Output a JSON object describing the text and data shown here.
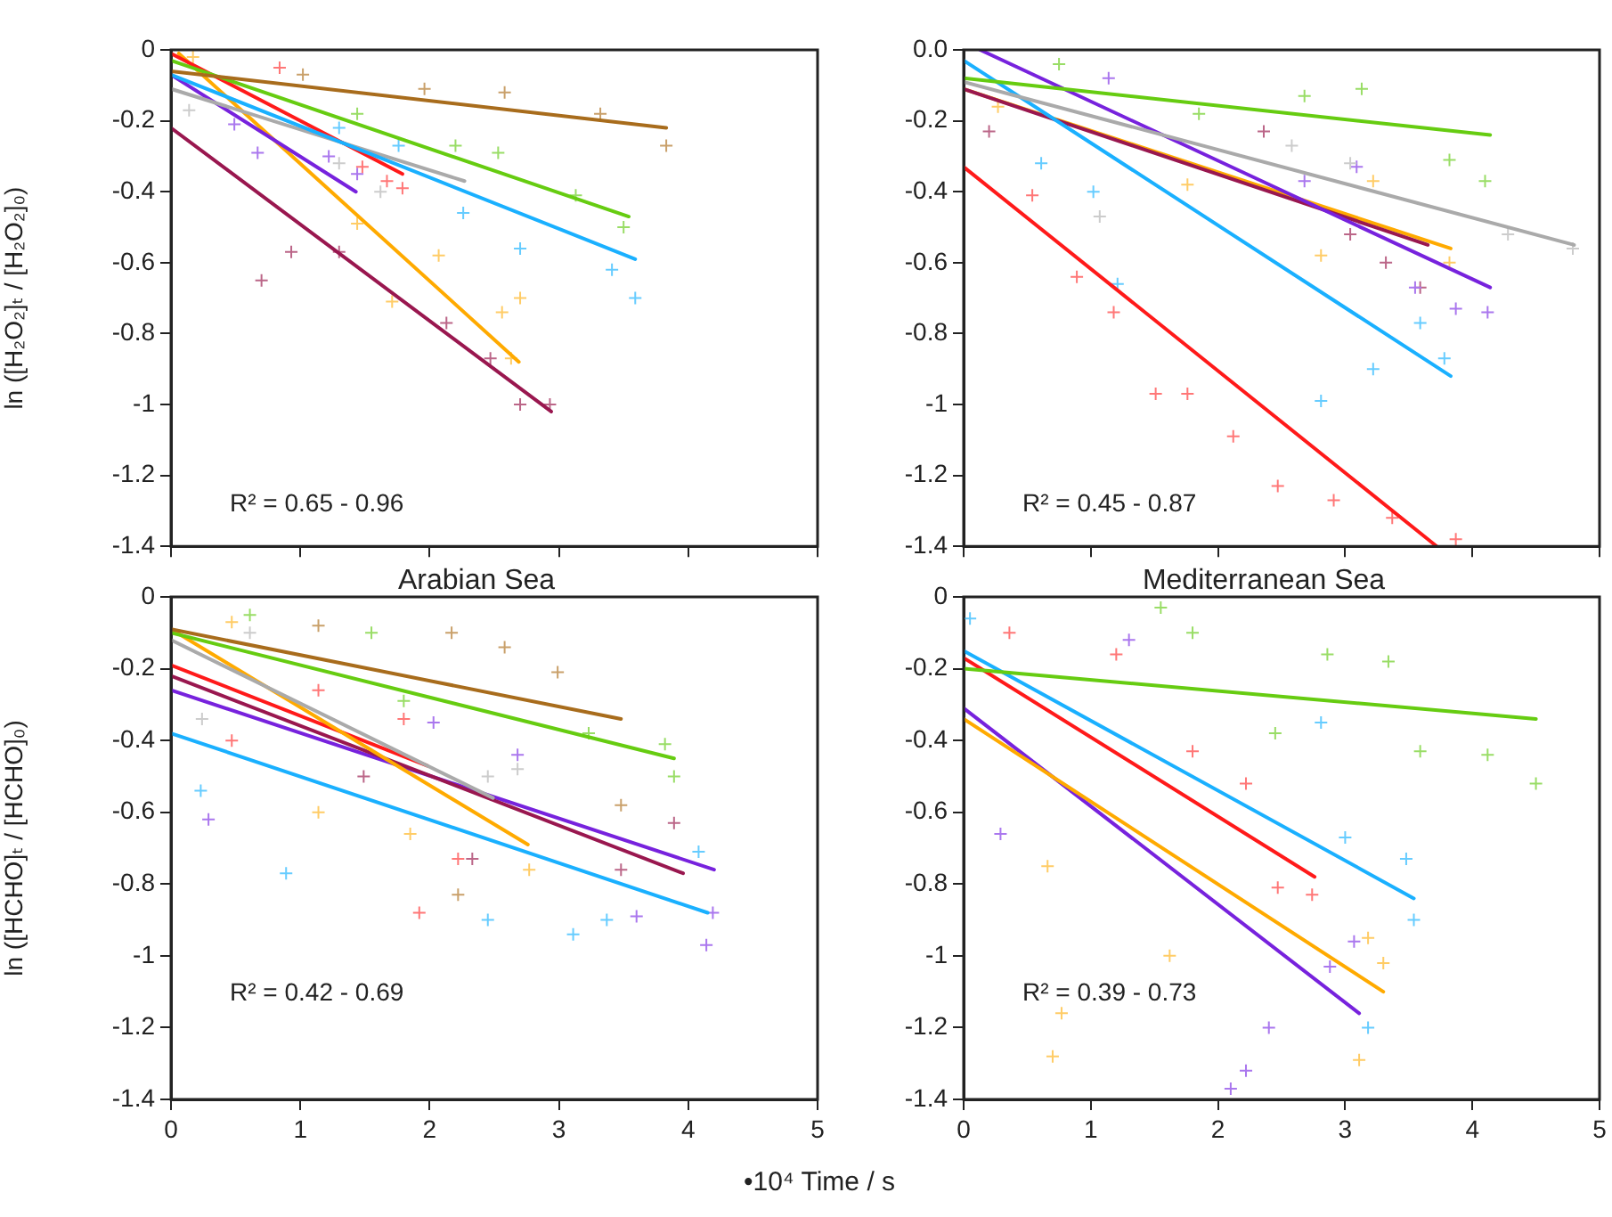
{
  "chart_data": [
    {
      "type": "scatter",
      "ylabel": "ln ([H₂O₂]ₜ / [H₂O₂]₀)",
      "xlim": [
        0,
        5
      ],
      "ylim": [
        -1.4,
        0
      ],
      "xticks": [
        0,
        1,
        2,
        3,
        4,
        5
      ],
      "yticks": [
        0,
        -0.2,
        -0.4,
        -0.6,
        -0.8,
        -1.0,
        -1.2,
        -1.4
      ],
      "tick_labels": "y",
      "annotations": [
        "R² = 0.65 - 0.96"
      ],
      "series": [
        {
          "marker": "cross",
          "color": "#c9a06a",
          "x": [
            1.02,
            1.96,
            2.58,
            3.32,
            3.83
          ],
          "values": [
            -0.07,
            -0.11,
            -0.12,
            -0.18,
            -0.27
          ]
        },
        {
          "marker": "cross",
          "color": "#99dd66",
          "x": [
            1.44,
            2.2,
            2.53,
            3.13,
            3.5
          ],
          "values": [
            -0.18,
            -0.27,
            -0.29,
            -0.41,
            -0.5
          ]
        },
        {
          "marker": "cross",
          "color": "#66ccff",
          "x": [
            1.3,
            1.76,
            2.26,
            2.7,
            3.41,
            3.59
          ],
          "values": [
            -0.22,
            -0.27,
            -0.46,
            -0.56,
            -0.62,
            -0.7
          ]
        },
        {
          "marker": "cross",
          "color": "#ff7777",
          "x": [
            0.84,
            1.48,
            1.67,
            1.79
          ],
          "values": [
            -0.05,
            -0.33,
            -0.37,
            -0.39
          ]
        },
        {
          "marker": "cross",
          "color": "#cccccc",
          "x": [
            0.14,
            1.3,
            1.62
          ],
          "values": [
            -0.17,
            -0.32,
            -0.4
          ]
        },
        {
          "marker": "cross",
          "color": "#aa77ee",
          "x": [
            0.49,
            0.67,
            1.22,
            1.44
          ],
          "values": [
            -0.21,
            -0.29,
            -0.3,
            -0.35
          ]
        },
        {
          "marker": "cross",
          "color": "#ffcc66",
          "x": [
            0.17,
            1.44,
            1.71,
            2.07,
            2.56,
            2.63,
            2.7
          ],
          "values": [
            -0.02,
            -0.49,
            -0.71,
            -0.58,
            -0.74,
            -0.87,
            -0.7
          ]
        },
        {
          "marker": "cross",
          "color": "#bb6688",
          "x": [
            0.7,
            0.93,
            1.3,
            2.13,
            2.47,
            2.7,
            2.93
          ],
          "values": [
            -0.65,
            -0.57,
            -0.57,
            -0.77,
            -0.87,
            -1.0,
            -1.0
          ]
        },
        {
          "type": "line",
          "color": "#a86c1c",
          "x": [
            0,
            3.83
          ],
          "values": [
            -0.06,
            -0.22
          ]
        },
        {
          "type": "line",
          "color": "#66cc11",
          "x": [
            0,
            3.54
          ],
          "values": [
            -0.03,
            -0.47
          ]
        },
        {
          "type": "line",
          "color": "#1ab0ff",
          "x": [
            0,
            3.59
          ],
          "values": [
            -0.07,
            -0.59
          ]
        },
        {
          "type": "line",
          "color": "#ff1a1a",
          "x": [
            0,
            1.79
          ],
          "values": [
            -0.01,
            -0.35
          ]
        },
        {
          "type": "line",
          "color": "#aaaaaa",
          "x": [
            0,
            2.27
          ],
          "values": [
            -0.11,
            -0.37
          ]
        },
        {
          "type": "line",
          "color": "#7722dd",
          "x": [
            0,
            1.43
          ],
          "values": [
            -0.07,
            -0.4
          ]
        },
        {
          "type": "line",
          "color": "#ffaa00",
          "x": [
            0.06,
            2.69
          ],
          "values": [
            -0.01,
            -0.88
          ]
        },
        {
          "type": "line",
          "color": "#99174f",
          "x": [
            0,
            2.94
          ],
          "values": [
            -0.22,
            -1.02
          ]
        }
      ]
    },
    {
      "type": "scatter",
      "xlim": [
        0,
        5
      ],
      "ylim": [
        -1.4,
        0
      ],
      "xticks": [
        0,
        1,
        2,
        3,
        4,
        5
      ],
      "yticks": [
        {
          "value": 0,
          "label": "0.0"
        },
        -0.2,
        -0.4,
        -0.6,
        -0.8,
        -1.0,
        -1.2,
        -1.4
      ],
      "tick_labels": "y",
      "annotations": [
        "R² = 0.45 - 0.87"
      ],
      "series": [
        {
          "marker": "cross",
          "color": "#99dd66",
          "x": [
            0.75,
            1.85,
            2.68,
            3.13,
            3.82,
            4.1
          ],
          "values": [
            -0.04,
            -0.18,
            -0.13,
            -0.11,
            -0.31,
            -0.37
          ]
        },
        {
          "marker": "cross",
          "color": "#cccccc",
          "x": [
            1.07,
            2.58,
            3.04,
            4.28,
            4.79
          ],
          "values": [
            -0.47,
            -0.27,
            -0.32,
            -0.52,
            -0.56
          ]
        },
        {
          "marker": "cross",
          "color": "#aa77ee",
          "x": [
            1.14,
            2.68,
            3.09,
            3.55,
            3.87,
            4.12
          ],
          "values": [
            -0.08,
            -0.37,
            -0.33,
            -0.67,
            -0.73,
            -0.74
          ]
        },
        {
          "marker": "cross",
          "color": "#66ccff",
          "x": [
            0.61,
            1.02,
            1.21,
            2.81,
            3.22,
            3.59,
            3.78
          ],
          "values": [
            -0.32,
            -0.4,
            -0.66,
            -0.99,
            -0.9,
            -0.77,
            -0.87
          ]
        },
        {
          "marker": "cross",
          "color": "#bb6688",
          "x": [
            0.2,
            2.36,
            3.04,
            3.32,
            3.59
          ],
          "values": [
            -0.23,
            -0.23,
            -0.52,
            -0.6,
            -0.67
          ]
        },
        {
          "marker": "cross",
          "color": "#ffcc66",
          "x": [
            0.27,
            1.76,
            2.81,
            3.22,
            3.82
          ],
          "values": [
            -0.16,
            -0.38,
            -0.58,
            -0.37,
            -0.6
          ]
        },
        {
          "marker": "cross",
          "color": "#ff7777",
          "x": [
            0.54,
            0.89,
            1.18,
            1.51,
            1.76,
            2.12,
            2.47,
            2.91,
            3.37,
            3.87
          ],
          "values": [
            -0.41,
            -0.64,
            -0.74,
            -0.97,
            -0.97,
            -1.09,
            -1.23,
            -1.27,
            -1.32,
            -1.38
          ]
        },
        {
          "type": "line",
          "color": "#66cc11",
          "x": [
            0,
            4.14
          ],
          "values": [
            -0.08,
            -0.24
          ]
        },
        {
          "type": "line",
          "color": "#aaaaaa",
          "x": [
            0,
            4.8
          ],
          "values": [
            -0.09,
            -0.55
          ]
        },
        {
          "type": "line",
          "color": "#7722dd",
          "x": [
            0.13,
            4.14
          ],
          "values": [
            0,
            -0.67
          ]
        },
        {
          "type": "line",
          "color": "#1ab0ff",
          "x": [
            0,
            3.83
          ],
          "values": [
            -0.03,
            -0.92
          ]
        },
        {
          "type": "line",
          "color": "#99174f",
          "x": [
            0,
            3.65
          ],
          "values": [
            -0.11,
            -0.55
          ]
        },
        {
          "type": "line",
          "color": "#ffaa00",
          "x": [
            0,
            3.83
          ],
          "values": [
            -0.11,
            -0.56
          ]
        },
        {
          "type": "line",
          "color": "#ff1a1a",
          "x": [
            0,
            3.72
          ],
          "values": [
            -0.33,
            -1.4
          ]
        }
      ]
    },
    {
      "type": "scatter",
      "title": "Arabian Sea",
      "ylabel": "ln ([HCHO]ₜ / [HCHO]₀)",
      "xlabel": "•10⁴ Time / s",
      "xlim": [
        0,
        5
      ],
      "ylim": [
        -1.4,
        0
      ],
      "xticks": [
        0,
        1,
        2,
        3,
        4,
        5
      ],
      "yticks": [
        0,
        -0.2,
        -0.4,
        -0.6,
        -0.8,
        -1.0,
        -1.2,
        -1.4
      ],
      "annotations": [
        "R² = 0.42 - 0.69"
      ],
      "series": [
        {
          "marker": "cross",
          "color": "#c9a06a",
          "x": [
            1.14,
            2.17,
            2.58,
            2.99,
            3.48,
            2.22
          ],
          "values": [
            -0.08,
            -0.1,
            -0.14,
            -0.21,
            -0.58,
            -0.83
          ]
        },
        {
          "marker": "cross",
          "color": "#99dd66",
          "x": [
            0.61,
            1.55,
            1.8,
            3.23,
            3.82,
            3.89
          ],
          "values": [
            -0.05,
            -0.1,
            -0.29,
            -0.38,
            -0.41,
            -0.5
          ]
        },
        {
          "marker": "cross",
          "color": "#cccccc",
          "x": [
            0.24,
            0.61,
            2.45,
            2.68
          ],
          "values": [
            -0.34,
            -0.1,
            -0.5,
            -0.48
          ]
        },
        {
          "marker": "cross",
          "color": "#ffcc66",
          "x": [
            0.47,
            1.14,
            1.85,
            2.77
          ],
          "values": [
            -0.07,
            -0.6,
            -0.66,
            -0.76
          ]
        },
        {
          "marker": "cross",
          "color": "#ff7777",
          "x": [
            0.47,
            1.14,
            1.8,
            1.92,
            2.22
          ],
          "values": [
            -0.4,
            -0.26,
            -0.34,
            -0.88,
            -0.73
          ]
        },
        {
          "marker": "cross",
          "color": "#bb6688",
          "x": [
            1.49,
            2.33,
            3.48,
            3.89
          ],
          "values": [
            -0.5,
            -0.73,
            -0.76,
            -0.63
          ]
        },
        {
          "marker": "cross",
          "color": "#aa77ee",
          "x": [
            0.29,
            2.03,
            2.68,
            3.6,
            4.14,
            4.19
          ],
          "values": [
            -0.62,
            -0.35,
            -0.44,
            -0.89,
            -0.97,
            -0.88
          ]
        },
        {
          "marker": "cross",
          "color": "#66ccff",
          "x": [
            0.23,
            0.89,
            2.45,
            3.11,
            3.37,
            4.08
          ],
          "values": [
            -0.54,
            -0.77,
            -0.9,
            -0.94,
            -0.9,
            -0.71
          ]
        },
        {
          "type": "line",
          "color": "#a86c1c",
          "x": [
            0,
            3.48
          ],
          "values": [
            -0.09,
            -0.34
          ]
        },
        {
          "type": "line",
          "color": "#66cc11",
          "x": [
            0,
            3.89
          ],
          "values": [
            -0.1,
            -0.45
          ]
        },
        {
          "type": "line",
          "color": "#aaaaaa",
          "x": [
            0,
            2.49
          ],
          "values": [
            -0.12,
            -0.56
          ]
        },
        {
          "type": "line",
          "color": "#ffaa00",
          "x": [
            0,
            2.76
          ],
          "values": [
            -0.09,
            -0.69
          ]
        },
        {
          "type": "line",
          "color": "#ff1a1a",
          "x": [
            0,
            1.98
          ],
          "values": [
            -0.19,
            -0.47
          ]
        },
        {
          "type": "line",
          "color": "#99174f",
          "x": [
            0,
            3.96
          ],
          "values": [
            -0.22,
            -0.77
          ]
        },
        {
          "type": "line",
          "color": "#7722dd",
          "x": [
            0,
            4.2
          ],
          "values": [
            -0.26,
            -0.76
          ]
        },
        {
          "type": "line",
          "color": "#1ab0ff",
          "x": [
            0,
            4.15
          ],
          "values": [
            -0.38,
            -0.88
          ]
        }
      ]
    },
    {
      "type": "scatter",
      "title": "Mediterranean Sea",
      "xlim": [
        0,
        5
      ],
      "ylim": [
        -1.4,
        0
      ],
      "xticks": [
        0,
        1,
        2,
        3,
        4,
        5
      ],
      "yticks": [
        0,
        -0.2,
        -0.4,
        -0.6,
        -0.8,
        -1.0,
        -1.2,
        -1.4
      ],
      "annotations": [
        "R² = 0.39 - 0.73"
      ],
      "series": [
        {
          "marker": "cross",
          "color": "#99dd66",
          "x": [
            1.55,
            1.8,
            2.45,
            2.86,
            3.34,
            3.59,
            4.12,
            4.5
          ],
          "values": [
            -0.03,
            -0.1,
            -0.38,
            -0.16,
            -0.18,
            -0.43,
            -0.44,
            -0.52
          ]
        },
        {
          "marker": "cross",
          "color": "#66ccff",
          "x": [
            0.05,
            2.81,
            3.0,
            3.48,
            3.54,
            3.18
          ],
          "values": [
            -0.06,
            -0.35,
            -0.67,
            -0.73,
            -0.9,
            -1.2
          ]
        },
        {
          "marker": "cross",
          "color": "#ff7777",
          "x": [
            0.36,
            1.2,
            1.8,
            2.22,
            2.47,
            2.74
          ],
          "values": [
            -0.1,
            -0.16,
            -0.43,
            -0.52,
            -0.81,
            -0.83
          ]
        },
        {
          "marker": "cross",
          "color": "#ffcc66",
          "x": [
            0.66,
            0.77,
            0.7,
            1.62,
            3.11,
            3.18,
            3.3
          ],
          "values": [
            -0.75,
            -1.16,
            -1.28,
            -1.0,
            -1.29,
            -0.95,
            -1.02
          ]
        },
        {
          "marker": "cross",
          "color": "#aa77ee",
          "x": [
            0.29,
            1.3,
            2.4,
            2.1,
            2.22,
            3.07,
            2.88
          ],
          "values": [
            -0.66,
            -0.12,
            -1.2,
            -1.37,
            -1.32,
            -0.96,
            -1.03
          ]
        },
        {
          "type": "line",
          "color": "#66cc11",
          "x": [
            0,
            4.5
          ],
          "values": [
            -0.2,
            -0.34
          ]
        },
        {
          "type": "line",
          "color": "#1ab0ff",
          "x": [
            0,
            3.54
          ],
          "values": [
            -0.15,
            -0.84
          ]
        },
        {
          "type": "line",
          "color": "#ff1a1a",
          "x": [
            0,
            2.76
          ],
          "values": [
            -0.17,
            -0.78
          ]
        },
        {
          "type": "line",
          "color": "#ffaa00",
          "x": [
            0,
            3.3
          ],
          "values": [
            -0.34,
            -1.1
          ]
        },
        {
          "type": "line",
          "color": "#7722dd",
          "x": [
            0,
            3.11
          ],
          "values": [
            -0.31,
            -1.16
          ]
        }
      ]
    }
  ]
}
